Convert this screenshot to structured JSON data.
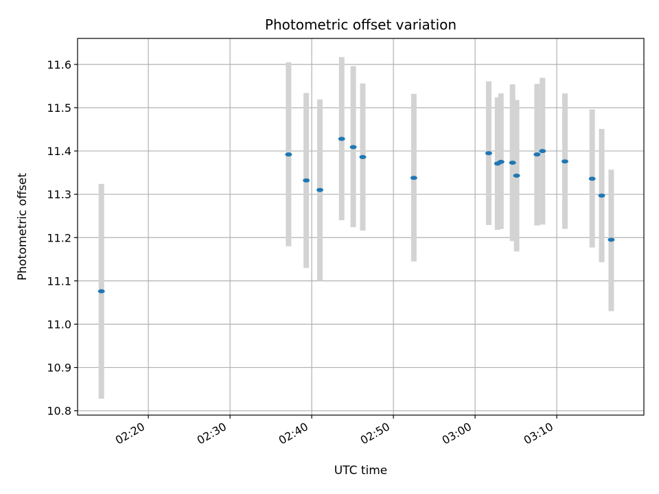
{
  "chart_data": {
    "type": "scatter",
    "title": "Photometric offset variation",
    "xlabel": "UTC time",
    "ylabel": "Photometric offset",
    "x_axis": "time",
    "xlim": [
      "02:11:20",
      "03:20:40"
    ],
    "ylim": [
      10.79,
      11.66
    ],
    "x_ticks": [
      "02:20",
      "02:30",
      "02:40",
      "02:50",
      "03:00",
      "03:10"
    ],
    "y_ticks": [
      10.8,
      10.9,
      11.0,
      11.1,
      11.2,
      11.3,
      11.4,
      11.5,
      11.6
    ],
    "grid": true,
    "legend": "none",
    "colors": {
      "marker": "#1f77b4",
      "errorbar": "#d3d3d3",
      "grid": "#b0b0b0"
    },
    "series": [
      {
        "points": [
          {
            "x": "02:14:15",
            "y": 11.076,
            "low": 10.828,
            "high": 11.324
          },
          {
            "x": "02:37:10",
            "y": 11.392,
            "low": 11.18,
            "high": 11.605
          },
          {
            "x": "02:39:20",
            "y": 11.332,
            "low": 11.13,
            "high": 11.534
          },
          {
            "x": "02:41:00",
            "y": 11.31,
            "low": 11.1,
            "high": 11.519
          },
          {
            "x": "02:43:40",
            "y": 11.428,
            "low": 11.24,
            "high": 11.617
          },
          {
            "x": "02:45:05",
            "y": 11.409,
            "low": 11.224,
            "high": 11.596
          },
          {
            "x": "02:46:15",
            "y": 11.386,
            "low": 11.216,
            "high": 11.556
          },
          {
            "x": "02:52:30",
            "y": 11.338,
            "low": 11.145,
            "high": 11.532
          },
          {
            "x": "03:01:40",
            "y": 11.395,
            "low": 11.229,
            "high": 11.561
          },
          {
            "x": "03:02:45",
            "y": 11.371,
            "low": 11.218,
            "high": 11.524
          },
          {
            "x": "03:03:10",
            "y": 11.375,
            "low": 11.22,
            "high": 11.533
          },
          {
            "x": "03:04:35",
            "y": 11.373,
            "low": 11.192,
            "high": 11.554
          },
          {
            "x": "03:05:05",
            "y": 11.343,
            "low": 11.168,
            "high": 11.518
          },
          {
            "x": "03:07:35",
            "y": 11.392,
            "low": 11.228,
            "high": 11.555
          },
          {
            "x": "03:08:15",
            "y": 11.4,
            "low": 11.23,
            "high": 11.569
          },
          {
            "x": "03:11:00",
            "y": 11.376,
            "low": 11.22,
            "high": 11.533
          },
          {
            "x": "03:14:20",
            "y": 11.336,
            "low": 11.177,
            "high": 11.496
          },
          {
            "x": "03:15:30",
            "y": 11.297,
            "low": 11.143,
            "high": 11.451
          },
          {
            "x": "03:16:40",
            "y": 11.195,
            "low": 11.03,
            "high": 11.357
          }
        ]
      }
    ]
  }
}
